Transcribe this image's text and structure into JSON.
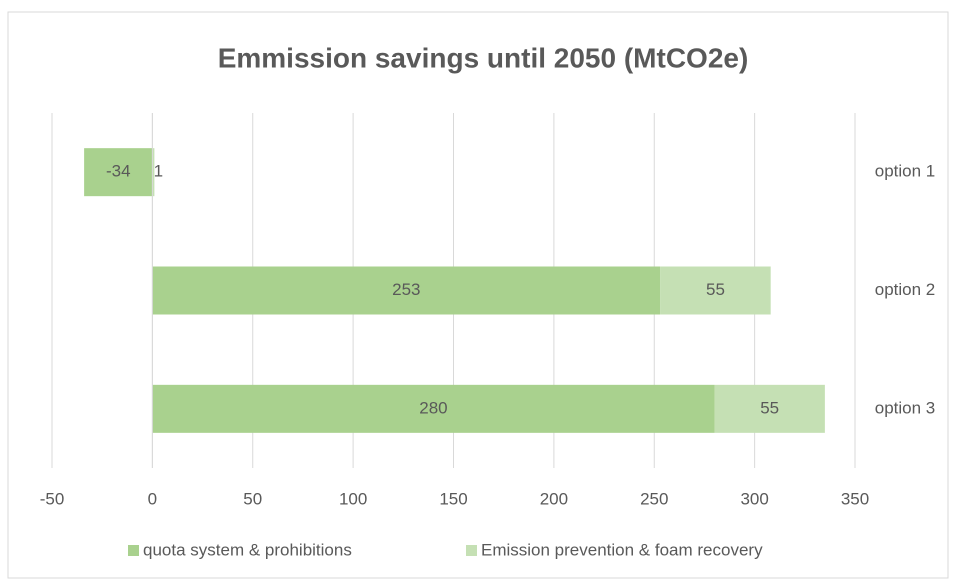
{
  "chart_data": {
    "type": "bar",
    "orientation": "horizontal",
    "stacked": true,
    "title": "Emmission savings until 2050 (MtCO2e)",
    "categories": [
      "option 1",
      "option 2",
      "option 3"
    ],
    "series": [
      {
        "name": "quota system & prohibitions",
        "color": "#a9d18e",
        "values": [
          -34,
          253,
          280
        ]
      },
      {
        "name": "Emission prevention & foam recovery",
        "color": "#c5e0b4",
        "values": [
          1,
          55,
          55
        ]
      }
    ],
    "xlim": [
      -50,
      350
    ],
    "xticks": [
      -50,
      0,
      50,
      100,
      150,
      200,
      250,
      300,
      350
    ],
    "grid": true,
    "legend": "bottom"
  }
}
